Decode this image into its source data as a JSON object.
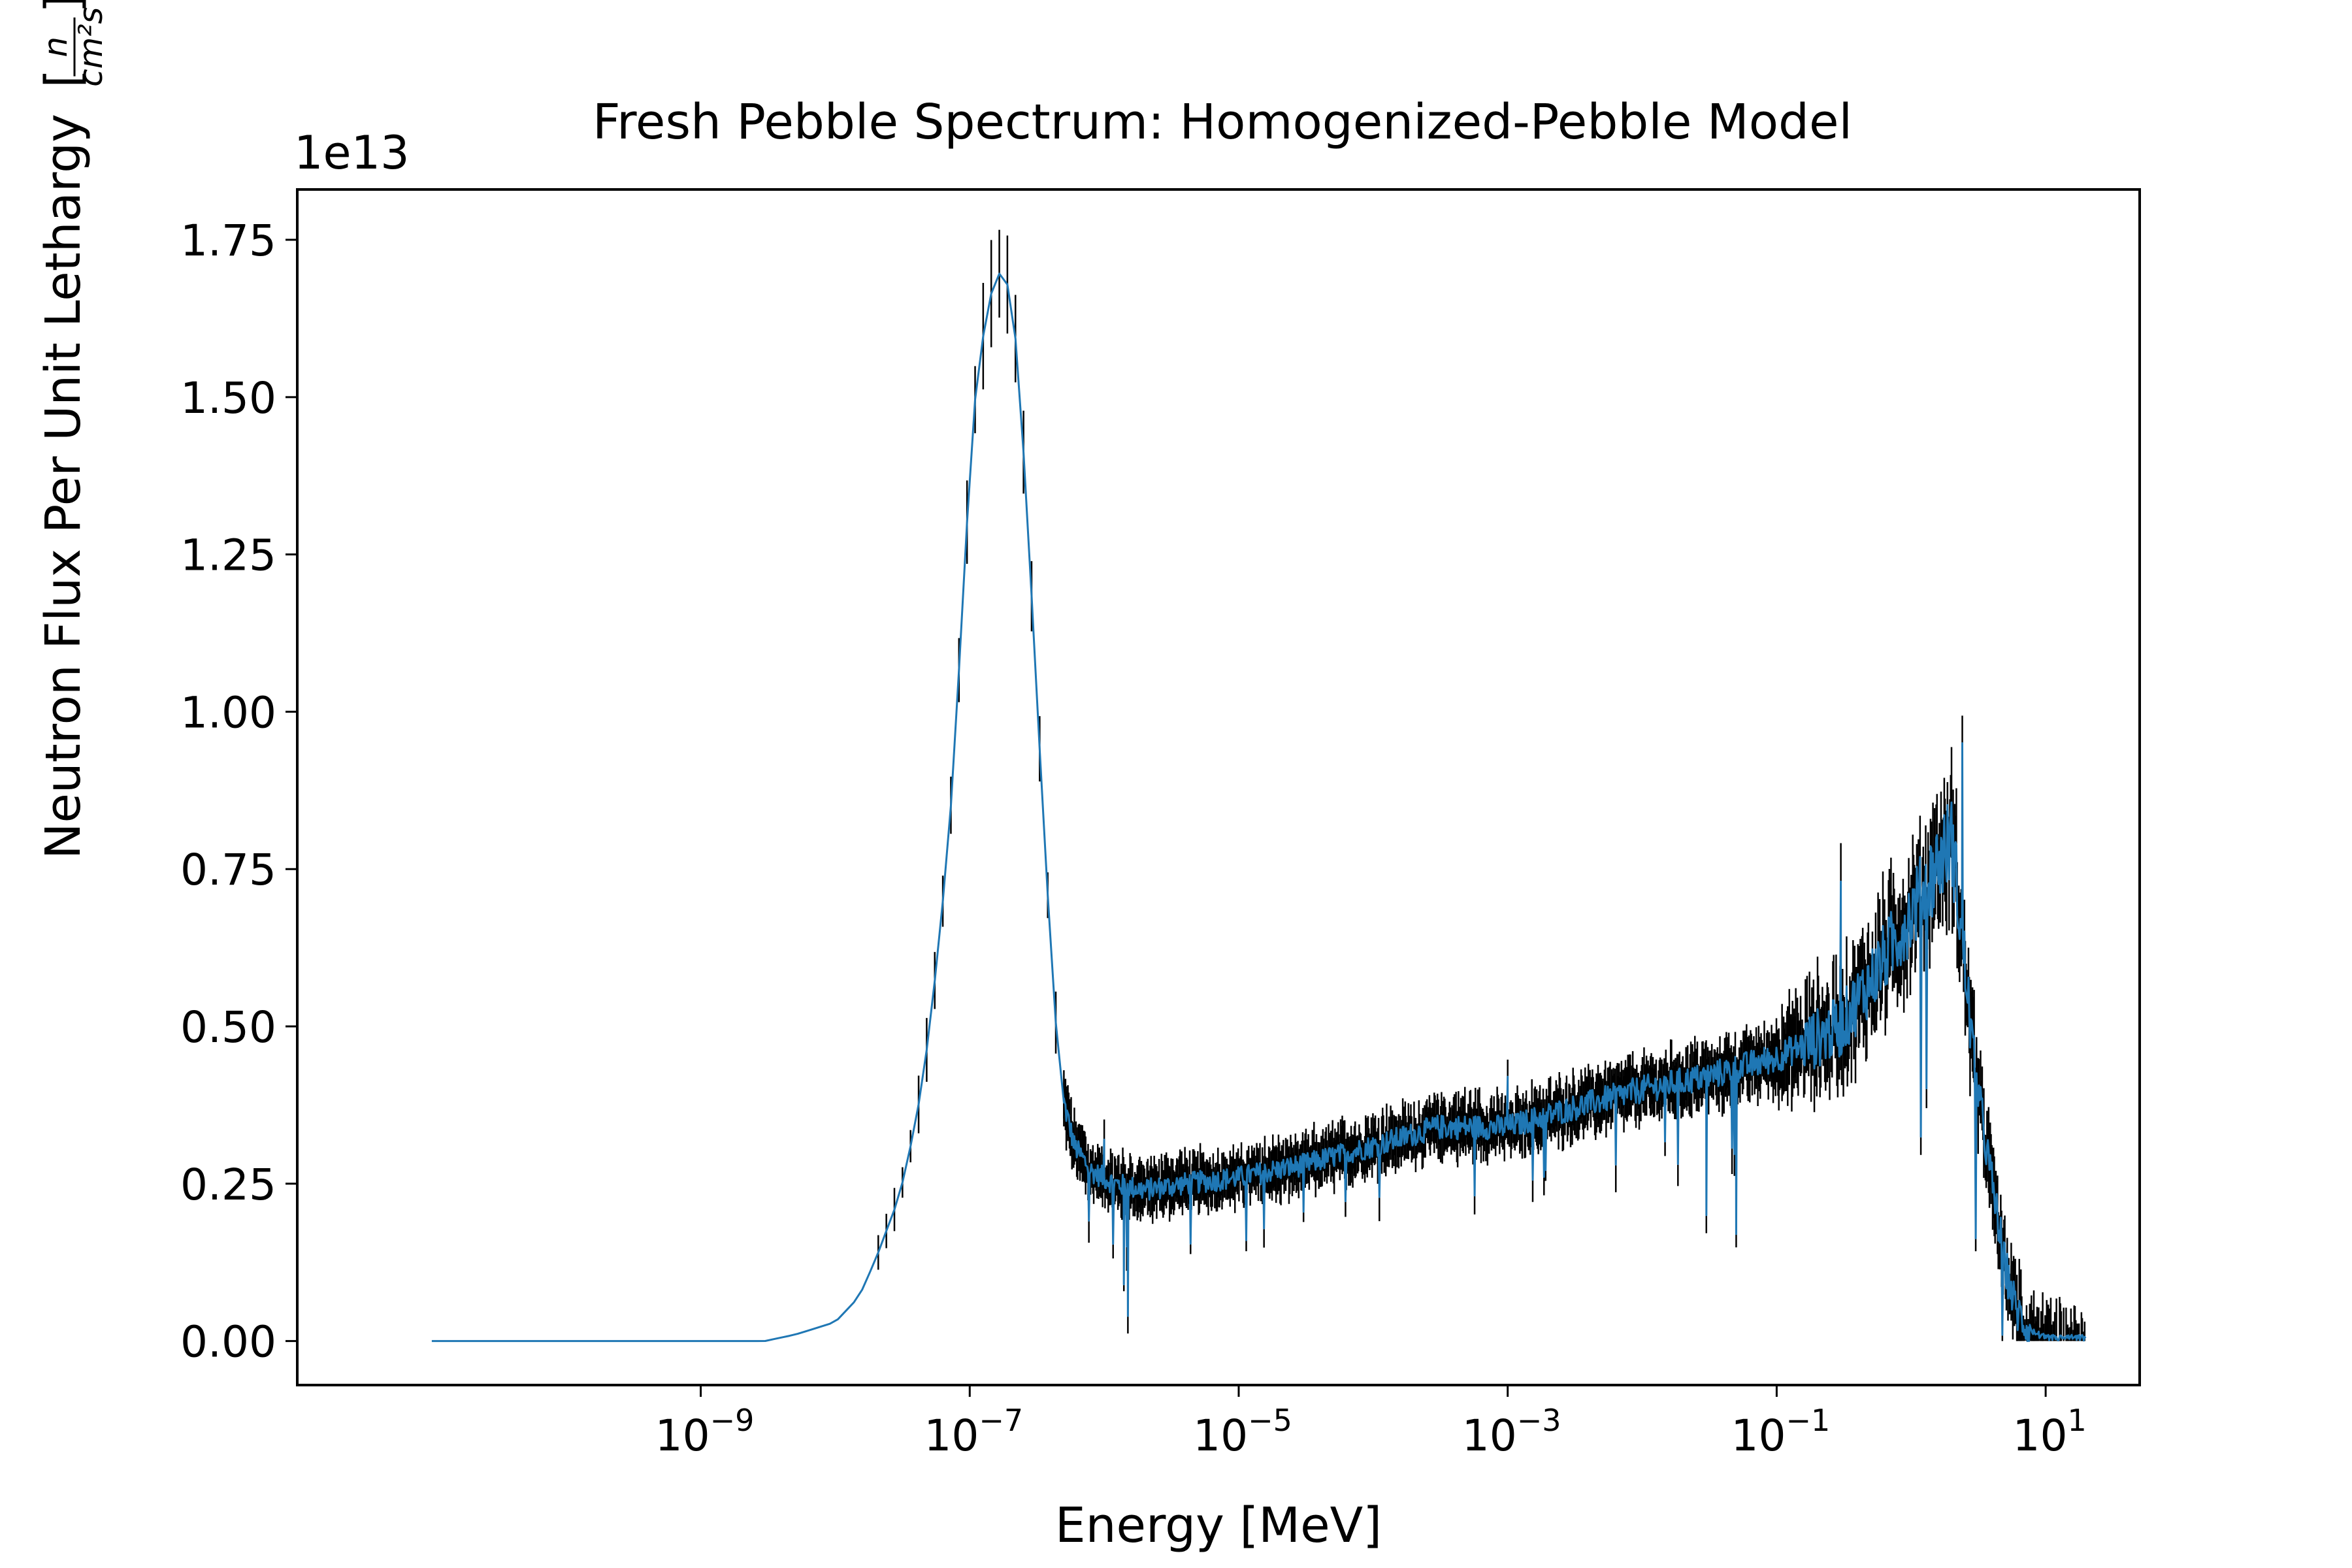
{
  "chart_data": {
    "type": "line",
    "title": "Fresh Pebble Spectrum: Homogenized-Pebble Model",
    "xlabel": "Energy [MeV]",
    "ylabel": "Neutron Flux Per Unit Lethargy",
    "ylabel_unit": {
      "numerator": "n",
      "denominator": "cm²s"
    },
    "y_offset_text": "1e13",
    "xscale": "log",
    "xlim": [
      1e-12,
      50
    ],
    "ylim": [
      -0.07,
      1.83
    ],
    "x_ticks": [
      {
        "value": 1e-09,
        "base": "10",
        "exp": "−9"
      },
      {
        "value": 1e-07,
        "base": "10",
        "exp": "−7"
      },
      {
        "value": 1e-05,
        "base": "10",
        "exp": "−5"
      },
      {
        "value": 0.001,
        "base": "10",
        "exp": "−3"
      },
      {
        "value": 0.1,
        "base": "10",
        "exp": "−1"
      },
      {
        "value": 10,
        "base": "10",
        "exp": "1"
      }
    ],
    "y_ticks": [
      {
        "value": 0.0,
        "label": "0.00"
      },
      {
        "value": 0.25,
        "label": "0.25"
      },
      {
        "value": 0.5,
        "label": "0.50"
      },
      {
        "value": 0.75,
        "label": "0.75"
      },
      {
        "value": 1.0,
        "label": "1.00"
      },
      {
        "value": 1.25,
        "label": "1.25"
      },
      {
        "value": 1.5,
        "label": "1.50"
      },
      {
        "value": 1.75,
        "label": "1.75"
      }
    ],
    "grid": false,
    "legend": "none",
    "series": [
      {
        "color": "#1f77b4",
        "error_bar_color": "#000000",
        "envelope": [
          [
            1e-11,
            0.0
          ],
          [
            3e-09,
            0.0
          ],
          [
            5e-09,
            0.01
          ],
          [
            1e-08,
            0.03
          ],
          [
            1.5e-08,
            0.07
          ],
          [
            2e-08,
            0.13
          ],
          [
            3e-08,
            0.23
          ],
          [
            4e-08,
            0.35
          ],
          [
            5e-08,
            0.49
          ],
          [
            6e-08,
            0.65
          ],
          [
            7e-08,
            0.8
          ],
          [
            8e-08,
            1.0
          ],
          [
            9e-08,
            1.2
          ],
          [
            1e-07,
            1.38
          ],
          [
            1.1e-07,
            1.5
          ],
          [
            1.3e-07,
            1.62
          ],
          [
            1.5e-07,
            1.68
          ],
          [
            1.7e-07,
            1.7
          ],
          [
            2e-07,
            1.67
          ],
          [
            2.3e-07,
            1.55
          ],
          [
            2.7e-07,
            1.3
          ],
          [
            3.2e-07,
            1.0
          ],
          [
            3.7e-07,
            0.75
          ],
          [
            4.3e-07,
            0.52
          ],
          [
            5e-07,
            0.38
          ],
          [
            6e-07,
            0.31
          ],
          [
            8e-07,
            0.27
          ],
          [
            1.2e-06,
            0.25
          ],
          [
            2e-06,
            0.24
          ],
          [
            4e-06,
            0.25
          ],
          [
            1e-05,
            0.26
          ],
          [
            3e-05,
            0.28
          ],
          [
            0.0001,
            0.31
          ],
          [
            0.0003,
            0.34
          ],
          [
            0.001,
            0.34
          ],
          [
            0.003,
            0.37
          ],
          [
            0.01,
            0.4
          ],
          [
            0.03,
            0.42
          ],
          [
            0.1,
            0.45
          ],
          [
            0.3,
            0.5
          ],
          [
            0.6,
            0.6
          ],
          [
            1.0,
            0.68
          ],
          [
            1.5,
            0.75
          ],
          [
            2.0,
            0.8
          ],
          [
            2.5,
            0.6
          ],
          [
            3.0,
            0.42
          ],
          [
            4.0,
            0.25
          ],
          [
            5.0,
            0.12
          ],
          [
            6.0,
            0.05
          ],
          [
            8.0,
            0.01
          ],
          [
            10.0,
            0.0
          ],
          [
            20.0,
            0.0
          ]
        ],
        "notable_points": [
          [
            1e-06,
            0.32
          ],
          [
            1.4e-06,
            0.09
          ],
          [
            1.5e-06,
            0.04
          ],
          [
            0.001,
            0.42
          ],
          [
            0.03,
            0.2
          ],
          [
            0.05,
            0.17
          ],
          [
            0.3,
            0.73
          ],
          [
            2.4,
            0.95
          ]
        ]
      }
    ]
  }
}
